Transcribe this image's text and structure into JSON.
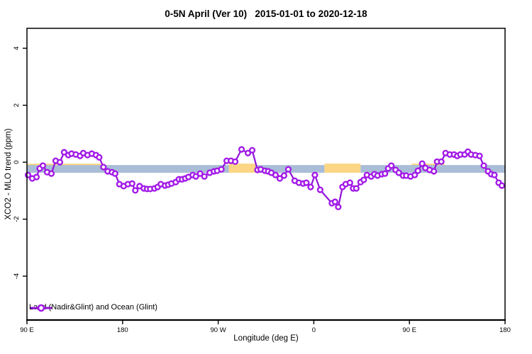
{
  "title": "0-5N April (Ver 10)   2015-01-01 to 2020-12-18",
  "colors": {
    "series_line": "#9013d9",
    "series_marker": "#a21ae8",
    "marker_fill": "#ffffff",
    "band_ocean": "#a9bdd6",
    "band_land": "#fcd685",
    "axis": "#000000"
  },
  "legend": {
    "entries": [
      {
        "label": "Land (Nadir&Glint) and Ocean (Glint)",
        "color": "#a21ae8",
        "marker": "open-circle-line"
      }
    ],
    "position": "bottom-left"
  },
  "chart_data": {
    "type": "line",
    "title": "0-5N April (Ver 10)   2015-01-01 to 2020-12-18",
    "xlabel": "Longitude (deg E)",
    "ylabel": "XCO2 - MLO trend (ppm)",
    "xlim": [
      90,
      540
    ],
    "ylim": [
      -5.54,
      4.7
    ],
    "grid": false,
    "x_ticks": [
      {
        "lon": 90,
        "label": "90 E"
      },
      {
        "lon": 180,
        "label": "180"
      },
      {
        "lon": 270,
        "label": "90 W"
      },
      {
        "lon": 360,
        "label": "0"
      },
      {
        "lon": 450,
        "label": "90 E"
      },
      {
        "lon": 540,
        "label": "180"
      }
    ],
    "y_ticks": [
      {
        "value": -4,
        "label": "-4"
      },
      {
        "value": -2,
        "label": "-2"
      },
      {
        "value": 0,
        "label": "0"
      },
      {
        "value": 2,
        "label": "2"
      },
      {
        "value": 4,
        "label": "4"
      }
    ],
    "bands": [
      {
        "name": "land-median-band",
        "color": "#fcd685",
        "value_top": -0.05,
        "value_bottom": -0.37,
        "lon_segments": [
          [
            90,
            161
          ],
          [
            280,
            305
          ],
          [
            370,
            404
          ],
          [
            452,
            483
          ]
        ]
      },
      {
        "name": "ocean-median-band",
        "color": "#a9bdd6",
        "value_top": -0.1,
        "value_bottom": -0.37,
        "lon_segments": [
          [
            90,
            280
          ],
          [
            305,
            370
          ],
          [
            404,
            540
          ]
        ]
      }
    ],
    "series": [
      {
        "name": "Land (Nadir&Glint) and Ocean (Glint)",
        "line_color": "#9013d9",
        "marker_color": "#a21ae8",
        "marker": "open-circle",
        "points": [
          [
            91,
            -0.45
          ],
          [
            95,
            -0.57
          ],
          [
            99,
            -0.52
          ],
          [
            102,
            -0.22
          ],
          [
            105,
            -0.12
          ],
          [
            109,
            -0.35
          ],
          [
            113,
            -0.4
          ],
          [
            117,
            0.05
          ],
          [
            121,
            0.0
          ],
          [
            125,
            0.35
          ],
          [
            129,
            0.25
          ],
          [
            132,
            0.3
          ],
          [
            136,
            0.27
          ],
          [
            140,
            0.22
          ],
          [
            143,
            0.32
          ],
          [
            147,
            0.25
          ],
          [
            151,
            0.3
          ],
          [
            155,
            0.25
          ],
          [
            158,
            0.17
          ],
          [
            162,
            -0.17
          ],
          [
            166,
            -0.32
          ],
          [
            170,
            -0.35
          ],
          [
            173,
            -0.4
          ],
          [
            177,
            -0.77
          ],
          [
            181,
            -0.84
          ],
          [
            185,
            -0.77
          ],
          [
            189,
            -0.75
          ],
          [
            192,
            -0.99
          ],
          [
            196,
            -0.84
          ],
          [
            200,
            -0.92
          ],
          [
            203,
            -0.94
          ],
          [
            206,
            -0.94
          ],
          [
            210,
            -0.92
          ],
          [
            213,
            -0.87
          ],
          [
            216,
            -0.77
          ],
          [
            220,
            -0.82
          ],
          [
            223,
            -0.79
          ],
          [
            226,
            -0.75
          ],
          [
            230,
            -0.7
          ],
          [
            233,
            -0.6
          ],
          [
            236,
            -0.6
          ],
          [
            239,
            -0.57
          ],
          [
            242,
            -0.52
          ],
          [
            246,
            -0.45
          ],
          [
            249,
            -0.5
          ],
          [
            253,
            -0.4
          ],
          [
            257,
            -0.5
          ],
          [
            262,
            -0.37
          ],
          [
            266,
            -0.32
          ],
          [
            269,
            -0.3
          ],
          [
            273,
            -0.25
          ],
          [
            278,
            0.05
          ],
          [
            282,
            0.05
          ],
          [
            286,
            0.02
          ],
          [
            292,
            0.45
          ],
          [
            298,
            0.32
          ],
          [
            302,
            0.42
          ],
          [
            307,
            -0.27
          ],
          [
            310,
            -0.25
          ],
          [
            314,
            -0.3
          ],
          [
            317,
            -0.32
          ],
          [
            320,
            -0.37
          ],
          [
            324,
            -0.45
          ],
          [
            328,
            -0.57
          ],
          [
            332,
            -0.47
          ],
          [
            336,
            -0.25
          ],
          [
            342,
            -0.65
          ],
          [
            346,
            -0.72
          ],
          [
            350,
            -0.75
          ],
          [
            353,
            -0.72
          ],
          [
            357,
            -0.87
          ],
          [
            361,
            -0.45
          ],
          [
            366,
            -0.97
          ],
          [
            377,
            -1.44
          ],
          [
            380,
            -1.39
          ],
          [
            383,
            -1.57
          ],
          [
            387,
            -0.87
          ],
          [
            390,
            -0.77
          ],
          [
            394,
            -0.72
          ],
          [
            397,
            -0.92
          ],
          [
            400,
            -0.92
          ],
          [
            404,
            -0.7
          ],
          [
            407,
            -0.62
          ],
          [
            410,
            -0.45
          ],
          [
            414,
            -0.5
          ],
          [
            417,
            -0.42
          ],
          [
            420,
            -0.47
          ],
          [
            424,
            -0.42
          ],
          [
            427,
            -0.4
          ],
          [
            430,
            -0.22
          ],
          [
            433,
            -0.12
          ],
          [
            437,
            -0.27
          ],
          [
            440,
            -0.37
          ],
          [
            444,
            -0.47
          ],
          [
            447,
            -0.47
          ],
          [
            451,
            -0.5
          ],
          [
            455,
            -0.45
          ],
          [
            458,
            -0.3
          ],
          [
            462,
            -0.05
          ],
          [
            465,
            -0.2
          ],
          [
            469,
            -0.27
          ],
          [
            473,
            -0.32
          ],
          [
            476,
            0.02
          ],
          [
            480,
            0.02
          ],
          [
            484,
            0.32
          ],
          [
            488,
            0.27
          ],
          [
            492,
            0.27
          ],
          [
            495,
            0.22
          ],
          [
            498,
            0.27
          ],
          [
            502,
            0.27
          ],
          [
            505,
            0.37
          ],
          [
            508,
            0.27
          ],
          [
            512,
            0.25
          ],
          [
            516,
            0.22
          ],
          [
            520,
            -0.12
          ],
          [
            524,
            -0.32
          ],
          [
            527,
            -0.42
          ],
          [
            530,
            -0.45
          ],
          [
            534,
            -0.72
          ],
          [
            537,
            -0.82
          ]
        ]
      }
    ]
  }
}
